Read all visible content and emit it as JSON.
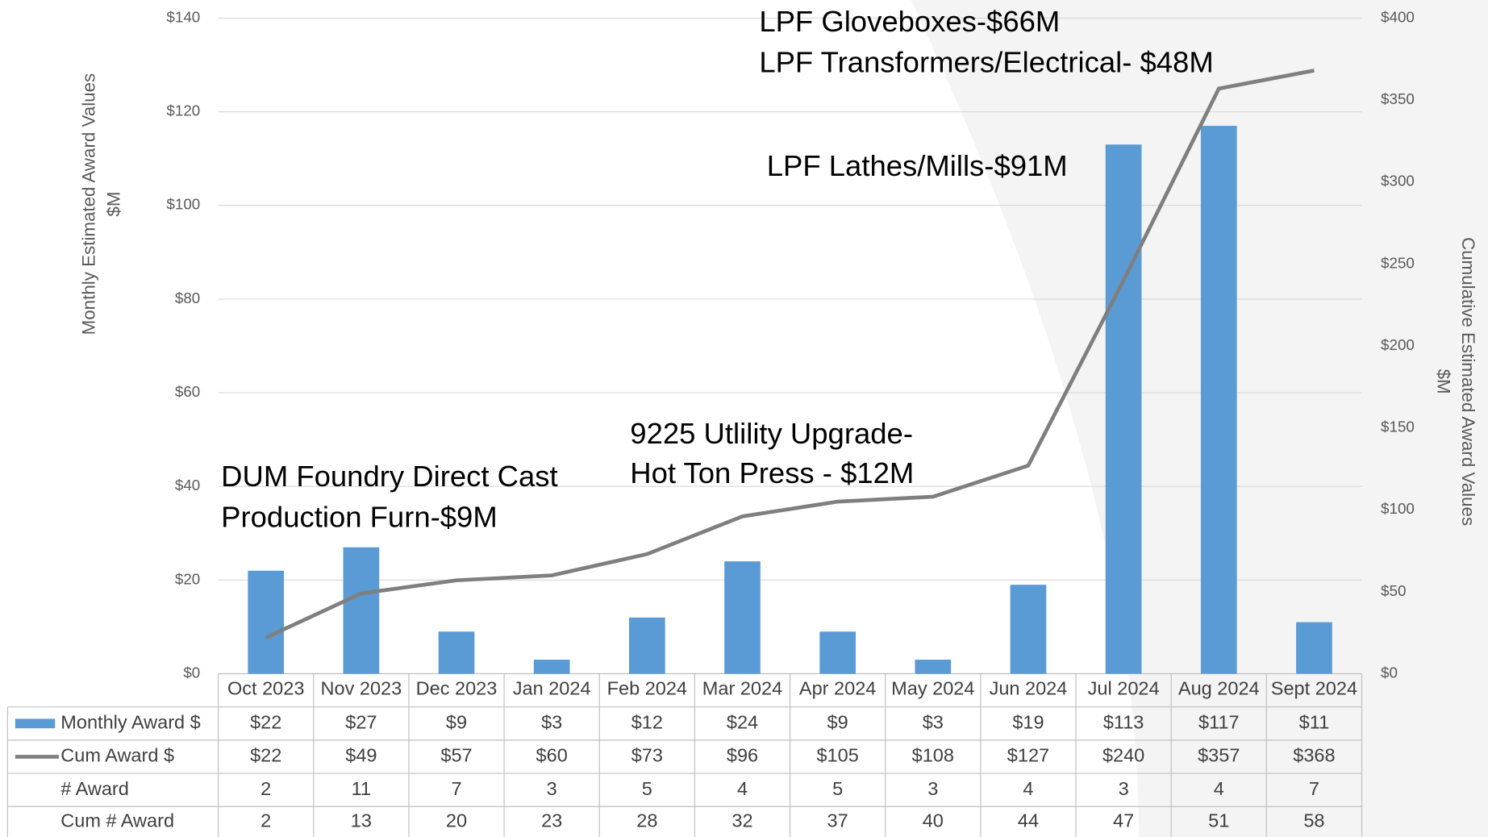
{
  "chart_data": {
    "type": "bar",
    "categories": [
      "Oct  2023",
      "Nov 2023",
      "Dec 2023",
      "Jan 2024",
      "Feb 2024",
      "Mar 2024",
      "Apr 2024",
      "May 2024",
      "Jun 2024",
      "Jul 2024",
      "Aug 2024",
      "Sept 2024"
    ],
    "series": [
      {
        "name": "Monthly Award $",
        "type": "bar",
        "color": "#5b9bd5",
        "values": [
          22,
          27,
          9,
          3,
          12,
          24,
          9,
          3,
          19,
          113,
          117,
          11
        ],
        "value_labels": [
          "$22",
          "$27",
          "$9",
          "$3",
          "$12",
          "$24",
          "$9",
          "$3",
          "$19",
          "$113",
          "$117",
          "$11"
        ]
      },
      {
        "name": "Cum Award $",
        "type": "line",
        "axis": "y2",
        "color": "#7f7f7f",
        "values": [
          22,
          49,
          57,
          60,
          73,
          96,
          105,
          108,
          127,
          240,
          357,
          368
        ],
        "value_labels": [
          "$22",
          "$49",
          "$57",
          "$60",
          "$73",
          "$96",
          "$105",
          "$108",
          "$127",
          "$240",
          "$357",
          "$368"
        ]
      }
    ],
    "table_rows": [
      {
        "name": "# Award",
        "values": [
          2,
          11,
          7,
          3,
          5,
          4,
          5,
          3,
          4,
          3,
          4,
          7
        ]
      },
      {
        "name": "Cum # Award",
        "values": [
          2,
          13,
          20,
          23,
          28,
          32,
          37,
          40,
          44,
          47,
          51,
          58
        ]
      }
    ],
    "y_label": [
      "Monthly Estimated Award Values",
      "$M"
    ],
    "y2_label": [
      "Cumulative Estimated Award Values",
      "$M"
    ],
    "ylim": [
      0,
      140
    ],
    "yticks": [
      {
        "value": 0,
        "label": "$0"
      },
      {
        "value": 20,
        "label": "$20"
      },
      {
        "value": 40,
        "label": "$40"
      },
      {
        "value": 60,
        "label": "$60"
      },
      {
        "value": 80,
        "label": "$80"
      },
      {
        "value": 100,
        "label": "$100"
      },
      {
        "value": 120,
        "label": "$120"
      },
      {
        "value": 140,
        "label": "$140"
      }
    ],
    "y2lim": [
      0,
      400
    ],
    "y2ticks": [
      {
        "value": 0,
        "label": "$0"
      },
      {
        "value": 50,
        "label": "$50"
      },
      {
        "value": 100,
        "label": "$100"
      },
      {
        "value": 150,
        "label": "$150"
      },
      {
        "value": 200,
        "label": "$200"
      },
      {
        "value": 250,
        "label": "$250"
      },
      {
        "value": 300,
        "label": "$300"
      },
      {
        "value": 350,
        "label": "$350"
      },
      {
        "value": 400,
        "label": "$400"
      }
    ],
    "grid": true,
    "annotations": [
      "LPF Gloveboxes-$66M",
      "LPF Transformers/Electrical- $48M",
      "LPF Lathes/Mills-$91M",
      "9225 Utlility Upgrade-",
      "Hot Ton Press - $12M",
      "DUM Foundry Direct Cast",
      "Production Furn-$9M"
    ]
  }
}
